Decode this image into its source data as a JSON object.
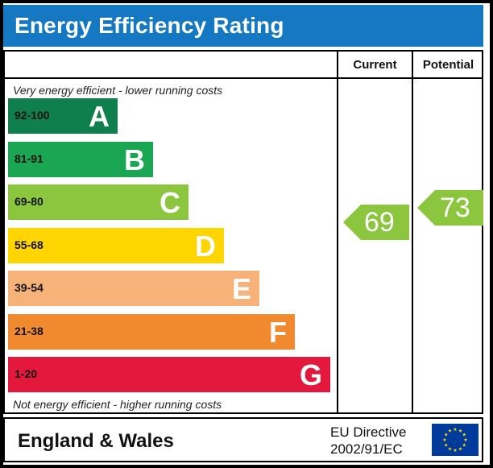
{
  "title": "Energy Efficiency Rating",
  "columns": {
    "current": "Current",
    "potential": "Potential"
  },
  "top_note": "Very energy efficient - lower running costs",
  "bottom_note": "Not energy efficient - higher running costs",
  "bands": [
    {
      "range": "92-100",
      "letter": "A",
      "color": "#0f7f4e"
    },
    {
      "range": "81-91",
      "letter": "B",
      "color": "#1aa653"
    },
    {
      "range": "69-80",
      "letter": "C",
      "color": "#8cc63f"
    },
    {
      "range": "55-68",
      "letter": "D",
      "color": "#ffd500"
    },
    {
      "range": "39-54",
      "letter": "E",
      "color": "#f7b27a"
    },
    {
      "range": "21-38",
      "letter": "F",
      "color": "#f18a2f"
    },
    {
      "range": "1-20",
      "letter": "G",
      "color": "#e3183c"
    }
  ],
  "current_rating": {
    "value": "69",
    "color": "#8cc63f"
  },
  "potential_rating": {
    "value": "73",
    "color": "#8cc63f"
  },
  "footer": {
    "region": "England & Wales",
    "directive_line1": "EU Directive",
    "directive_line2": "2002/91/EC",
    "flag_icon": "eu-flag-icon"
  }
}
